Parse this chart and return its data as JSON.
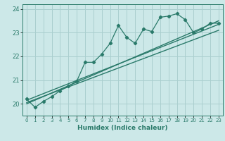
{
  "xlabel": "Humidex (Indice chaleur)",
  "ylabel": "",
  "bg_color": "#cce8e8",
  "grid_color": "#aacfcf",
  "line_color": "#2a7a6a",
  "xlim": [
    -0.5,
    23.5
  ],
  "ylim": [
    19.5,
    24.2
  ],
  "yticks": [
    20,
    21,
    22,
    23,
    24
  ],
  "xticks": [
    0,
    1,
    2,
    3,
    4,
    5,
    6,
    7,
    8,
    9,
    10,
    11,
    12,
    13,
    14,
    15,
    16,
    17,
    18,
    19,
    20,
    21,
    22,
    23
  ],
  "jagged_x": [
    0,
    1,
    2,
    3,
    4,
    5,
    6,
    7,
    8,
    9,
    10,
    11,
    12,
    13,
    14,
    15,
    16,
    17,
    18,
    19,
    20,
    21,
    22,
    23
  ],
  "jagged_y": [
    20.2,
    19.85,
    20.1,
    20.3,
    20.55,
    20.75,
    20.95,
    21.75,
    21.75,
    22.1,
    22.55,
    23.3,
    22.8,
    22.55,
    23.15,
    23.05,
    23.65,
    23.7,
    23.8,
    23.55,
    23.0,
    23.15,
    23.4,
    23.4
  ],
  "line1_x": [
    0,
    23
  ],
  "line1_y": [
    20.15,
    23.35
  ],
  "line2_x": [
    0,
    23
  ],
  "line2_y": [
    20.05,
    23.1
  ],
  "line3_x": [
    0,
    23
  ],
  "line3_y": [
    20.0,
    23.5
  ]
}
